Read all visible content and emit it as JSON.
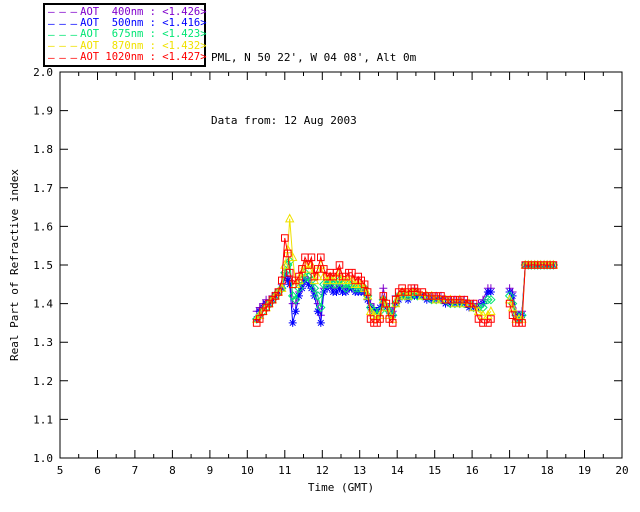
{
  "page": {
    "background": "#ffffff",
    "text_color": "#000000"
  },
  "header": {
    "line1": "PML, N 50 22', W 04 08', Alt 0m",
    "line2": "Data from: 12 Aug 2003"
  },
  "legend": {
    "dash_sample": "— — —"
  },
  "chart_data": {
    "type": "line",
    "title": "",
    "xlabel": "Time (GMT)",
    "ylabel": "Real Part of Refractive index",
    "xlim": [
      5,
      20
    ],
    "ylim": [
      1.0,
      2.0
    ],
    "grid": false,
    "legend_position": "top-left-outside",
    "x_tick_labels": [
      "5",
      "6",
      "7",
      "8",
      "9",
      "10",
      "11",
      "12",
      "13",
      "14",
      "15",
      "16",
      "17",
      "18",
      "19",
      "20"
    ],
    "x_minor_tick_step": 0.5,
    "y_tick_labels": [
      "1.0",
      "1.1",
      "1.2",
      "1.3",
      "1.4",
      "1.5",
      "1.6",
      "1.7",
      "1.8",
      "1.9",
      "2.0"
    ],
    "x": [
      10.25,
      10.33,
      10.42,
      10.5,
      10.58,
      10.67,
      10.75,
      10.83,
      10.92,
      11.0,
      11.08,
      11.13,
      11.21,
      11.29,
      11.38,
      11.46,
      11.54,
      11.63,
      11.71,
      11.79,
      11.88,
      11.96,
      12.04,
      12.13,
      12.21,
      12.29,
      12.38,
      12.46,
      12.54,
      12.63,
      12.71,
      12.79,
      12.88,
      12.96,
      13.04,
      13.13,
      13.21,
      13.29,
      13.38,
      13.46,
      13.54,
      13.63,
      13.71,
      13.79,
      13.88,
      13.96,
      14.04,
      14.13,
      14.21,
      14.29,
      14.38,
      14.46,
      14.54,
      14.67,
      14.79,
      14.92,
      15.04,
      15.17,
      15.29,
      15.42,
      15.54,
      15.67,
      15.79,
      15.92,
      16.04,
      16.17,
      16.29,
      16.42,
      16.5,
      16.75,
      17.0,
      17.08,
      17.17,
      17.25,
      17.33,
      17.42,
      17.5,
      17.58,
      17.67,
      17.75,
      17.83,
      17.92,
      18.0,
      18.08,
      18.17
    ],
    "series": [
      {
        "label": "AOT  400nm : <1.426>",
        "wavelength": "400nm",
        "color": "#8000CC",
        "marker": "plus",
        "values": [
          1.38,
          1.39,
          1.4,
          1.41,
          1.41,
          1.42,
          1.42,
          1.43,
          1.45,
          1.48,
          1.47,
          1.46,
          1.4,
          1.4,
          1.43,
          1.45,
          1.47,
          1.46,
          1.45,
          1.43,
          1.4,
          1.37,
          1.44,
          1.45,
          1.46,
          1.44,
          1.44,
          1.45,
          1.44,
          1.44,
          1.44,
          1.44,
          1.44,
          1.44,
          1.44,
          1.43,
          1.42,
          1.4,
          1.39,
          1.38,
          1.39,
          1.44,
          1.4,
          1.39,
          1.38,
          1.42,
          1.42,
          1.43,
          1.43,
          1.42,
          1.43,
          1.44,
          1.43,
          1.42,
          1.42,
          1.42,
          1.42,
          1.42,
          1.41,
          1.41,
          1.41,
          1.41,
          1.41,
          1.4,
          1.4,
          1.4,
          1.41,
          1.44,
          1.44,
          null,
          1.44,
          1.43,
          1.38,
          1.37,
          1.38,
          1.5,
          1.5,
          1.5,
          1.5,
          1.5,
          1.5,
          1.5,
          1.5,
          1.5,
          1.5
        ]
      },
      {
        "label": "AOT  500nm : <1.416>",
        "wavelength": "500nm",
        "color": "#0000FF",
        "marker": "asterisk",
        "values": [
          1.36,
          1.38,
          1.39,
          1.4,
          1.4,
          1.41,
          1.42,
          1.43,
          1.44,
          1.47,
          1.46,
          1.45,
          1.35,
          1.38,
          1.42,
          1.44,
          1.46,
          1.45,
          1.44,
          1.42,
          1.38,
          1.35,
          1.43,
          1.44,
          1.45,
          1.43,
          1.43,
          1.44,
          1.43,
          1.43,
          1.44,
          1.44,
          1.43,
          1.43,
          1.43,
          1.43,
          1.41,
          1.39,
          1.38,
          1.38,
          1.39,
          1.41,
          1.39,
          1.38,
          1.37,
          1.4,
          1.41,
          1.42,
          1.42,
          1.41,
          1.42,
          1.42,
          1.42,
          1.42,
          1.41,
          1.41,
          1.41,
          1.41,
          1.4,
          1.4,
          1.4,
          1.4,
          1.4,
          1.39,
          1.39,
          1.39,
          1.4,
          1.43,
          1.43,
          null,
          1.43,
          1.42,
          1.37,
          1.36,
          1.37,
          1.5,
          1.5,
          1.5,
          1.5,
          1.5,
          1.5,
          1.5,
          1.5,
          1.5,
          1.5
        ]
      },
      {
        "label": "AOT  675nm : <1.423>",
        "wavelength": "675nm",
        "color": "#00E673",
        "marker": "diamond",
        "values": [
          1.36,
          1.37,
          1.38,
          1.39,
          1.4,
          1.41,
          1.42,
          1.43,
          1.44,
          1.48,
          1.5,
          1.51,
          1.42,
          1.41,
          1.44,
          1.46,
          1.48,
          1.47,
          1.46,
          1.44,
          1.42,
          1.39,
          1.45,
          1.45,
          1.46,
          1.45,
          1.45,
          1.46,
          1.45,
          1.44,
          1.45,
          1.45,
          1.44,
          1.44,
          1.44,
          1.44,
          1.42,
          1.39,
          1.38,
          1.37,
          1.38,
          1.41,
          1.39,
          1.38,
          1.37,
          1.4,
          1.42,
          1.42,
          1.42,
          1.42,
          1.42,
          1.43,
          1.42,
          1.42,
          1.42,
          1.41,
          1.41,
          1.41,
          1.41,
          1.4,
          1.4,
          1.4,
          1.4,
          1.4,
          1.39,
          1.39,
          1.39,
          1.41,
          1.41,
          null,
          1.42,
          1.4,
          1.37,
          1.36,
          1.37,
          1.5,
          1.5,
          1.5,
          1.5,
          1.5,
          1.5,
          1.5,
          1.5,
          1.5,
          1.5
        ]
      },
      {
        "label": "AOT  870nm : <1.432>",
        "wavelength": "870nm",
        "color": "#F0E100",
        "marker": "triangle",
        "values": [
          1.36,
          1.37,
          1.38,
          1.39,
          1.4,
          1.41,
          1.42,
          1.43,
          1.44,
          1.5,
          1.54,
          1.62,
          1.52,
          1.45,
          1.46,
          1.48,
          1.5,
          1.49,
          1.5,
          1.46,
          1.47,
          1.5,
          1.47,
          1.46,
          1.47,
          1.46,
          1.47,
          1.48,
          1.46,
          1.46,
          1.46,
          1.46,
          1.45,
          1.45,
          1.45,
          1.44,
          1.42,
          1.38,
          1.37,
          1.36,
          1.37,
          1.41,
          1.39,
          1.37,
          1.36,
          1.4,
          1.42,
          1.43,
          1.43,
          1.42,
          1.43,
          1.43,
          1.43,
          1.42,
          1.42,
          1.42,
          1.41,
          1.41,
          1.41,
          1.41,
          1.4,
          1.41,
          1.4,
          1.4,
          1.39,
          1.38,
          1.37,
          1.37,
          1.38,
          null,
          1.41,
          1.39,
          1.36,
          1.36,
          1.36,
          1.5,
          1.5,
          1.5,
          1.5,
          1.5,
          1.5,
          1.5,
          1.5,
          1.5,
          1.5
        ]
      },
      {
        "label": "AOT 1020nm : <1.427>",
        "wavelength": "1020nm",
        "color": "#FF0000",
        "marker": "square",
        "values": [
          1.35,
          1.36,
          1.38,
          1.39,
          1.4,
          1.41,
          1.42,
          1.43,
          1.46,
          1.57,
          1.53,
          1.48,
          1.45,
          1.46,
          1.47,
          1.49,
          1.52,
          1.5,
          1.52,
          1.47,
          1.49,
          1.52,
          1.49,
          1.47,
          1.48,
          1.47,
          1.48,
          1.5,
          1.47,
          1.47,
          1.48,
          1.48,
          1.46,
          1.47,
          1.46,
          1.45,
          1.43,
          1.36,
          1.35,
          1.35,
          1.36,
          1.42,
          1.4,
          1.36,
          1.35,
          1.41,
          1.43,
          1.44,
          1.43,
          1.43,
          1.44,
          1.44,
          1.43,
          1.43,
          1.42,
          1.42,
          1.42,
          1.42,
          1.41,
          1.41,
          1.41,
          1.41,
          1.41,
          1.4,
          1.4,
          1.36,
          1.35,
          1.35,
          1.36,
          null,
          1.4,
          1.37,
          1.35,
          1.35,
          1.35,
          1.5,
          1.5,
          1.5,
          1.5,
          1.5,
          1.5,
          1.5,
          1.5,
          1.5,
          1.5
        ]
      }
    ]
  }
}
